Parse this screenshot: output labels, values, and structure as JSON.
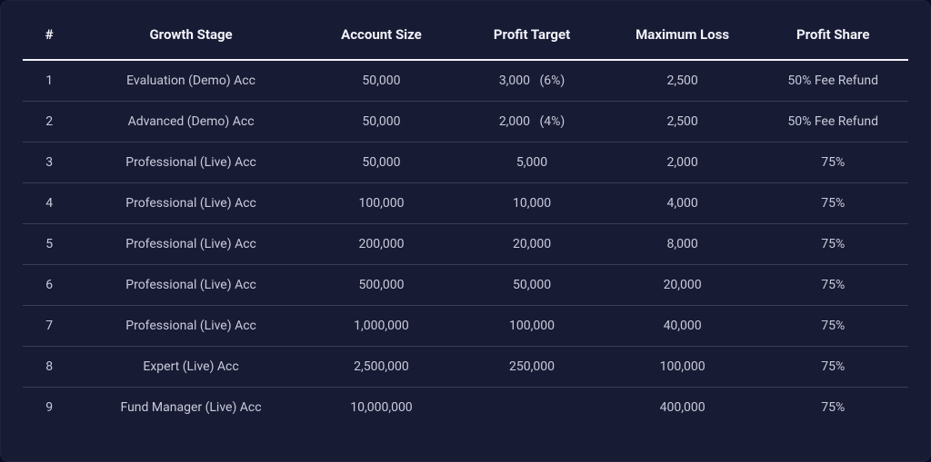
{
  "style": {
    "background_color": "#0c0f24",
    "panel_color": "#181b34",
    "header_text_color": "#f2f2fa",
    "body_text_color": "#c9cadb",
    "header_rule_color": "#f2f2fa",
    "row_rule_color": "#3a3d56",
    "header_fontsize": 15,
    "body_fontsize": 14
  },
  "table": {
    "columns": [
      {
        "key": "idx",
        "label": "#"
      },
      {
        "key": "stage",
        "label": "Growth Stage"
      },
      {
        "key": "size",
        "label": "Account Size"
      },
      {
        "key": "target",
        "label": "Profit Target"
      },
      {
        "key": "loss",
        "label": "Maximum Loss"
      },
      {
        "key": "share",
        "label": "Profit Share"
      }
    ],
    "rows": [
      {
        "idx": "1",
        "stage": "Evaluation (Demo) Acc",
        "size": "50,000",
        "target": "3,000   (6%)",
        "loss": "2,500",
        "share": "50% Fee Refund"
      },
      {
        "idx": "2",
        "stage": "Advanced (Demo) Acc",
        "size": "50,000",
        "target": "2,000   (4%)",
        "loss": "2,500",
        "share": "50% Fee Refund"
      },
      {
        "idx": "3",
        "stage": "Professional (Live) Acc",
        "size": "50,000",
        "target": "5,000",
        "loss": "2,000",
        "share": "75%"
      },
      {
        "idx": "4",
        "stage": "Professional (Live) Acc",
        "size": "100,000",
        "target": "10,000",
        "loss": "4,000",
        "share": "75%"
      },
      {
        "idx": "5",
        "stage": "Professional (Live) Acc",
        "size": "200,000",
        "target": "20,000",
        "loss": "8,000",
        "share": "75%"
      },
      {
        "idx": "6",
        "stage": "Professional (Live) Acc",
        "size": "500,000",
        "target": "50,000",
        "loss": "20,000",
        "share": "75%"
      },
      {
        "idx": "7",
        "stage": "Professional (Live) Acc",
        "size": "1,000,000",
        "target": "100,000",
        "loss": "40,000",
        "share": "75%"
      },
      {
        "idx": "8",
        "stage": "Expert (Live) Acc",
        "size": "2,500,000",
        "target": "250,000",
        "loss": "100,000",
        "share": "75%"
      },
      {
        "idx": "9",
        "stage": "Fund Manager (Live) Acc",
        "size": "10,000,000",
        "target": "",
        "loss": "400,000",
        "share": "75%"
      }
    ]
  }
}
